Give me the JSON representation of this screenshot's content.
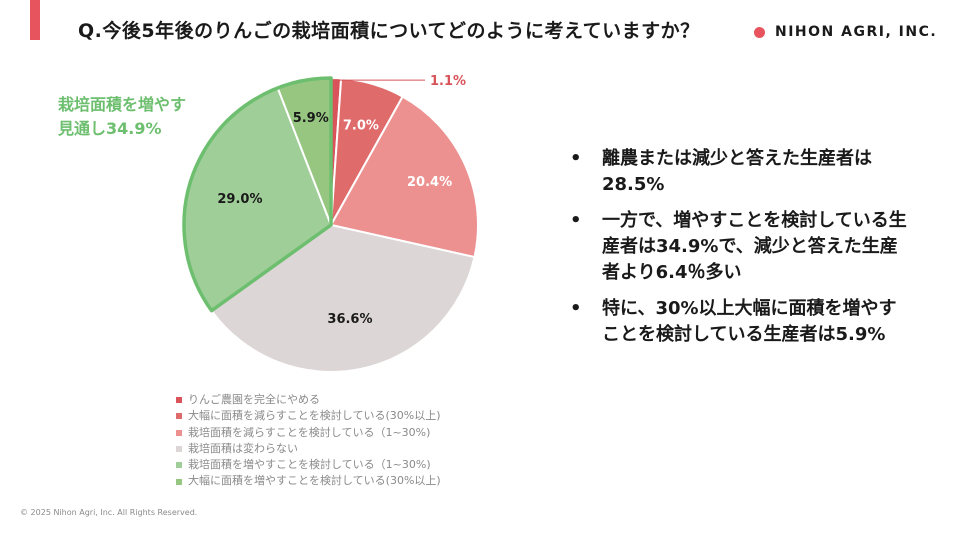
{
  "header": {
    "title": "Q.今後5年後のりんごの栽培面積についてどのように考えていますか？",
    "logo_text": "NIHON AGRI, INC.",
    "accent_color": "#e8545e"
  },
  "chart_data": {
    "type": "pie",
    "start": "12 o'clock, clockwise",
    "categories": [
      "りんご農園を完全にやめる",
      "大幅に面積を減らすことを検討している(30%以上)",
      "栽培面積を減らすことを検討している（1~30%)",
      "栽培面積は変わらない",
      "栽培面積を増やすことを検討している（1~30%)",
      "大幅に面積を増やすことを検討している(30%以上)"
    ],
    "values": [
      1.1,
      7.0,
      20.4,
      36.6,
      29.0,
      5.9
    ],
    "data_labels": [
      "1.1%",
      "7.0%",
      "20.4%",
      "36.6%",
      "29.0%",
      "5.9%"
    ],
    "colors": [
      "#d8545a",
      "#e06b6b",
      "#ec9190",
      "#ddd6d6",
      "#9fce98",
      "#96c680"
    ],
    "legend_position": "bottom",
    "annotation": {
      "lines": [
        "栽培面積を増やす",
        "見通し34.9%"
      ],
      "highlight_color": "#6dbf6f"
    }
  },
  "bullets": [
    "離農または減少と答えた生産者は28.5%",
    "一方で、増やすことを検討している生産者は34.9%で、減少と答えた生産者より6.4％多い",
    "特に、30%以上大幅に面積を増やすことを検討している生産者は5.9%"
  ],
  "footer": {
    "copyright": "© 2025 Nihon Agri, Inc. All Rights Reserved."
  }
}
